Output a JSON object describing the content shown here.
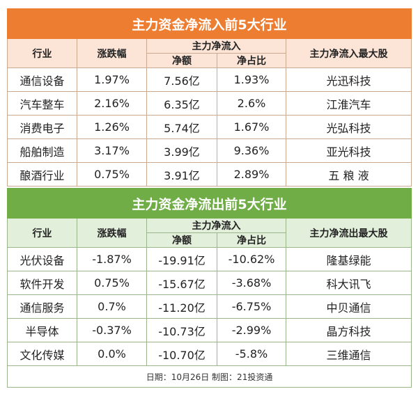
{
  "inflow": {
    "title": "主力资金净流入前5大行业",
    "headers": {
      "industry": "行业",
      "change": "涨跌幅",
      "group": "主力净流入",
      "amount": "净额",
      "ratio": "净占比",
      "top": "主力净流入最大股"
    },
    "rows": [
      [
        "通信设备",
        "1.97%",
        "7.56亿",
        "1.93%",
        "光迅科技"
      ],
      [
        "汽车整车",
        "2.16%",
        "6.35亿",
        "2.6%",
        "江淮汽车"
      ],
      [
        "消费电子",
        "1.26%",
        "5.74亿",
        "1.67%",
        "光弘科技"
      ],
      [
        "船舶制造",
        "3.17%",
        "3.99亿",
        "9.36%",
        "亚光科技"
      ],
      [
        "酿酒行业",
        "0.75%",
        "3.91亿",
        "2.89%",
        "五 粮 液"
      ]
    ]
  },
  "outflow": {
    "title": "主力资金净流出前5大行业",
    "headers": {
      "industry": "行业",
      "change": "涨跌幅",
      "group": "主力净流入",
      "amount": "净额",
      "ratio": "净占比",
      "top": "主力净流出最大股"
    },
    "rows": [
      [
        "光伏设备",
        "-1.87%",
        "-19.91亿",
        "-10.62%",
        "隆基绿能"
      ],
      [
        "软件开发",
        "0.75%",
        "-15.67亿",
        "-3.68%",
        "科大讯飞"
      ],
      [
        "通信服务",
        "0.7%",
        "-11.20亿",
        "-6.75%",
        "中贝通信"
      ],
      [
        "半导体",
        "-0.37%",
        "-10.73亿",
        "-2.99%",
        "晶方科技"
      ],
      [
        "文化传媒",
        "0.0%",
        "-10.70亿",
        "-5.8%",
        "三维通信"
      ]
    ]
  },
  "footer": "日期：10月26日 制图：21投资通"
}
